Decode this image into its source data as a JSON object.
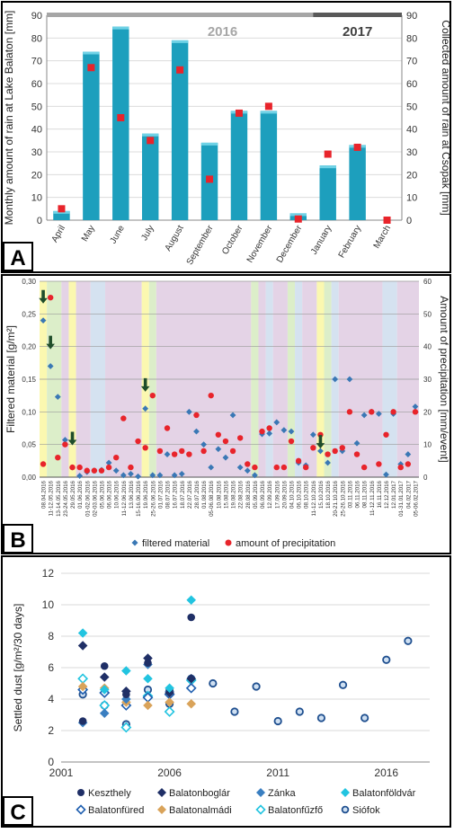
{
  "panels": {
    "a": "A",
    "b": "B",
    "c": "C"
  },
  "chart_data": [
    {
      "type": "bar",
      "panel": "A",
      "years": [
        "2016",
        "2017"
      ],
      "categories": [
        "April",
        "May",
        "June",
        "July",
        "August",
        "September",
        "October",
        "November",
        "December",
        "January",
        "February",
        "March"
      ],
      "ylabel": "Monthly amount of rain at Lake Balaton [mm]",
      "y2label": "Collected amount of rain at Csopak [mm]",
      "ylim": [
        0,
        90
      ],
      "yticks": [
        0,
        10,
        20,
        30,
        40,
        50,
        60,
        70,
        80,
        90
      ],
      "series": [
        {
          "type": "bar",
          "values": [
            4,
            74,
            85,
            38,
            79,
            34,
            48,
            48,
            3,
            24,
            33,
            0
          ],
          "color": "#1d9fbd"
        },
        {
          "type": "marker",
          "values": [
            5,
            67,
            45,
            35,
            66,
            18,
            47,
            50,
            0.5,
            29,
            32,
            0
          ],
          "color": "#e8242b"
        }
      ]
    },
    {
      "type": "scatter",
      "panel": "B",
      "ylabel": "Filtered material [g/m²]",
      "y2label": "Amount of precipitation [mm/event]",
      "ylim": [
        0,
        0.3
      ],
      "y2lim": [
        0,
        60
      ],
      "yticks": [
        "0,00",
        "0,05",
        "0,10",
        "0,15",
        "0,20",
        "0,25",
        "0,30"
      ],
      "y2ticks": [
        "0",
        "10",
        "20",
        "30",
        "40",
        "50",
        "60"
      ],
      "categories": [
        "08.04.2016",
        "11-12.05.2016",
        "13-14.05.2016",
        "23-24.05.2016",
        "29.05.2016",
        "01.06.2016",
        "01-02.06.2016",
        "02-03.06.2016",
        "05.06.2016",
        "06.06.2016",
        "10.06.2016",
        "11-12.06.2016",
        "13.06.2016",
        "15-16.06.2016",
        "19.06.2016",
        "25-26.06.2016",
        "01.07.2016",
        "08.07.2016",
        "16.07.2016",
        "18.07.2016",
        "22.07.2016",
        "28.07.2016",
        "01.08.2016",
        "05-06.08.2016",
        "10.08.2016",
        "15.08.2016",
        "19.08.2016",
        "22.08.2016",
        "28.08.2016",
        "05.09.2016",
        "06.09.2016",
        "12.09.2016",
        "17.09.2016",
        "20.09.2016",
        "04.10.2016",
        "06.10.2016",
        "08.10.2016",
        "11-12.10.2016",
        "15.10.2016",
        "18.10.2016",
        "20-21.10.2016",
        "25-26.10.2016",
        "03.11.2016",
        "06.11.2016",
        "08.11.2016",
        "11-12.11.2016",
        "16.11.2016",
        "12.12.2016",
        "12.01.2017",
        "01-31.01.2017",
        "04.02.2017",
        "05-06.02.2017"
      ],
      "series": [
        {
          "name": "filtered material",
          "values": [
            0.24,
            0.17,
            0.123,
            0.057,
            0.015,
            0.002,
            0.008,
            0.01,
            0.011,
            0.022,
            0.01,
            0.003,
            0.005,
            0.001,
            0.105,
            0.003,
            0.003,
            0.035,
            0.003,
            0.005,
            0.1,
            0.07,
            0.05,
            0.015,
            0.043,
            0.03,
            0.095,
            0.015,
            0.01,
            0.003,
            0.066,
            0.067,
            0.084,
            0.072,
            0.07,
            0.022,
            0.018,
            0.065,
            0.04,
            0.022,
            0.15,
            0.04,
            0.15,
            0.052,
            0.095,
            0.1,
            0.097,
            0.004,
            0.097,
            0.02,
            0.035,
            0.108
          ],
          "color": "#3a78b5"
        },
        {
          "name": "amount of precipitation",
          "values": [
            4,
            55,
            6,
            10,
            3,
            3,
            2,
            2,
            2,
            3,
            6,
            18,
            3,
            11,
            9,
            25,
            8,
            15,
            7,
            8,
            7,
            19,
            8,
            25,
            13,
            11,
            8,
            12,
            4,
            3,
            14,
            15,
            3,
            3,
            11,
            5,
            3,
            9,
            13,
            7,
            8,
            9,
            20,
            7,
            3,
            20,
            4,
            13,
            20,
            3,
            4,
            20
          ],
          "color": "#e8242b"
        }
      ],
      "arrows_at": [
        "08.04.2016",
        "11-12.05.2016",
        "29.05.2016",
        "19.06.2016",
        "15.10.2016"
      ]
    },
    {
      "type": "scatter",
      "panel": "C",
      "ylabel": "Settled dust [g/m²/30 days]",
      "xlim": [
        2001,
        2018
      ],
      "ylim": [
        0,
        12
      ],
      "xticks": [
        2001,
        2006,
        2011,
        2016
      ],
      "yticks": [
        0,
        2,
        4,
        6,
        8,
        10,
        12
      ],
      "series": [
        {
          "name": "Keszthely",
          "marker": "circle-filled",
          "color": "#1f2f66",
          "x": [
            2002,
            2003,
            2004,
            2005,
            2006,
            2007
          ],
          "y": [
            2.6,
            6.1,
            4.3,
            6.3,
            4.6,
            9.2
          ]
        },
        {
          "name": "Balatonboglár",
          "marker": "diamond-filled",
          "color": "#1f2f66",
          "x": [
            2002,
            2003,
            2004,
            2005,
            2006,
            2007
          ],
          "y": [
            7.4,
            5.4,
            4.5,
            6.6,
            4.4,
            5.3
          ]
        },
        {
          "name": "Zánka",
          "marker": "diamond-filled",
          "color": "#3a7fc1",
          "x": [
            2002,
            2003,
            2004,
            2005,
            2006,
            2007
          ],
          "y": [
            2.5,
            3.1,
            4.0,
            6.2,
            4.5,
            5.3
          ]
        },
        {
          "name": "Balatonföldvár",
          "marker": "diamond-filled",
          "color": "#22c4e0",
          "x": [
            2002,
            2003,
            2004,
            2005,
            2006,
            2007
          ],
          "y": [
            8.2,
            4.6,
            5.8,
            5.3,
            4.7,
            10.3
          ]
        },
        {
          "name": "Balatonfüred",
          "marker": "diamond-open",
          "color": "#1f5fb0",
          "x": [
            2002,
            2003,
            2004,
            2005,
            2006,
            2007
          ],
          "y": [
            4.6,
            4.4,
            3.6,
            4.1,
            4.3,
            4.7
          ]
        },
        {
          "name": "Balatonalmádi",
          "marker": "diamond-filled",
          "color": "#d9a35a",
          "x": [
            2002,
            2003,
            2004,
            2005,
            2006,
            2007
          ],
          "y": [
            4.8,
            4.7,
            3.8,
            3.6,
            3.8,
            3.7
          ]
        },
        {
          "name": "Balatonfűzfő",
          "marker": "diamond-open",
          "color": "#22c4e0",
          "x": [
            2002,
            2003,
            2004,
            2005,
            2006,
            2007
          ],
          "y": [
            5.3,
            3.6,
            2.2,
            4.2,
            3.2,
            5.2
          ]
        },
        {
          "name": "Siófok",
          "marker": "circle-open",
          "color": "#1f4f8f",
          "x": [
            2002,
            2003,
            2004,
            2005,
            2006,
            2007,
            2008,
            2009,
            2010,
            2011,
            2012,
            2013,
            2014,
            2015,
            2016,
            2017
          ],
          "y": [
            4.3,
            3.6,
            2.4,
            4.6,
            3.7,
            5.3,
            5.0,
            3.2,
            4.8,
            2.6,
            3.2,
            2.8,
            4.9,
            2.8,
            6.5,
            7.7
          ]
        }
      ]
    }
  ]
}
